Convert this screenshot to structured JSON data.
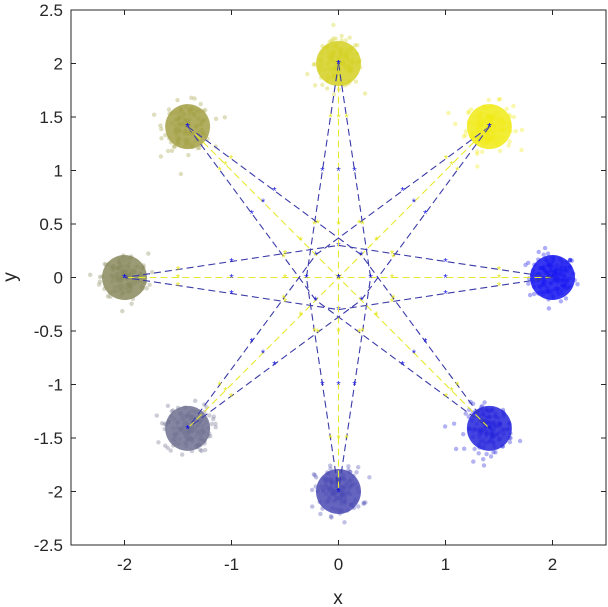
{
  "chart_data": {
    "type": "scatter",
    "title": "",
    "xlabel": "x",
    "ylabel": "y",
    "xlim": [
      -2.5,
      2.5
    ],
    "ylim": [
      -2.5,
      2.5
    ],
    "x_ticks": [
      -2,
      -1,
      0,
      1,
      2
    ],
    "y_ticks": [
      -2.5,
      -2,
      -1.5,
      -1,
      -0.5,
      0,
      0.5,
      1,
      1.5,
      2,
      2.5
    ],
    "x_tick_labels": [
      "-2",
      "-1",
      "0",
      "1",
      "2"
    ],
    "y_tick_labels": [
      "-2.5",
      "-2",
      "-1.5",
      "-1",
      "-0.5",
      "0",
      "0.5",
      "1",
      "1.5",
      "2",
      "2.5"
    ],
    "grid": false,
    "legend": "none",
    "cluster_radius": 0.2,
    "clusters": [
      {
        "center": [
          2.0,
          0.0
        ],
        "color": "#1414f0"
      },
      {
        "center": [
          1.41,
          1.41
        ],
        "color": "#f0ea14"
      },
      {
        "center": [
          0.0,
          2.0
        ],
        "color": "#d4d022"
      },
      {
        "center": [
          -1.41,
          1.41
        ],
        "color": "#a3a045"
      },
      {
        "center": [
          -2.0,
          0.0
        ],
        "color": "#8a8a5e"
      },
      {
        "center": [
          -1.41,
          -1.41
        ],
        "color": "#6f7090"
      },
      {
        "center": [
          0.0,
          -2.0
        ],
        "color": "#4a4ab4"
      },
      {
        "center": [
          1.41,
          -1.41
        ],
        "color": "#2323dc"
      }
    ],
    "trajectory_colors": {
      "line_a": "#3a3aa8",
      "line_b": "#e8e830",
      "marker_a": "#1a1ae0",
      "marker_b": "#e6e61a"
    },
    "trajectory_pairs": [
      [
        0,
        4
      ],
      [
        1,
        5
      ],
      [
        2,
        6
      ],
      [
        3,
        7
      ]
    ]
  }
}
